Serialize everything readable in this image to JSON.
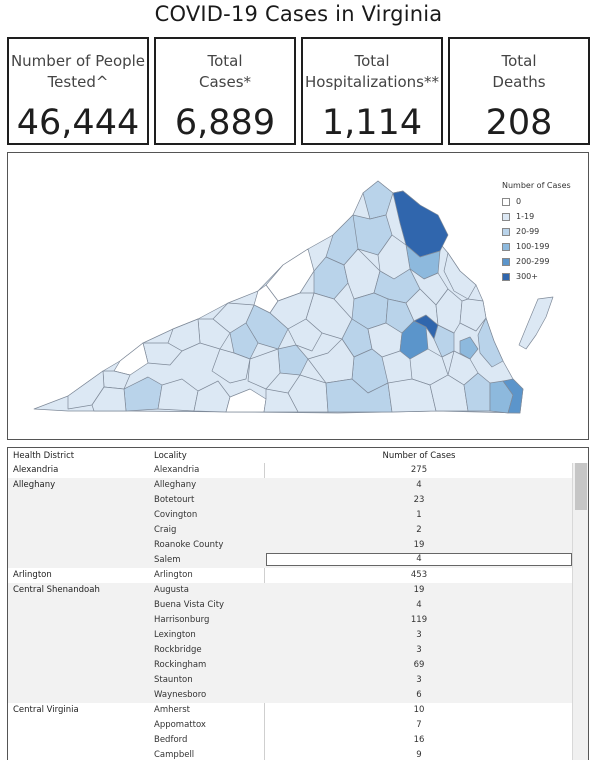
{
  "header": {
    "title": "COVID-19 Cases in Virginia"
  },
  "kpis": [
    {
      "label_lines": [
        "Number of People",
        "Tested^"
      ],
      "value": "46,444"
    },
    {
      "label_lines": [
        "Total",
        "Cases*"
      ],
      "value": "6,889"
    },
    {
      "label_lines": [
        "Total",
        "Hospitalizations**"
      ],
      "value": "1,114"
    },
    {
      "label_lines": [
        "Total",
        "Deaths"
      ],
      "value": "208"
    }
  ],
  "map": {
    "legend_title": "Number of Cases",
    "legend": [
      {
        "label": "0",
        "color": "#ffffff"
      },
      {
        "label": "1-19",
        "color": "#dce8f4"
      },
      {
        "label": "20-99",
        "color": "#b9d3ea"
      },
      {
        "label": "100-199",
        "color": "#8db9dd"
      },
      {
        "label": "200-299",
        "color": "#5b95cb"
      },
      {
        "label": "300+",
        "color": "#3066ad"
      }
    ]
  },
  "table": {
    "headers": {
      "district": "Health District",
      "locality": "Locality",
      "cases": "Number of Cases"
    },
    "groups": [
      {
        "district": "Alexandria",
        "rows": [
          {
            "locality": "Alexandria",
            "cases": "275"
          }
        ]
      },
      {
        "district": "Alleghany",
        "rows": [
          {
            "locality": "Alleghany",
            "cases": "4"
          },
          {
            "locality": "Botetourt",
            "cases": "23"
          },
          {
            "locality": "Covington",
            "cases": "1"
          },
          {
            "locality": "Craig",
            "cases": "2"
          },
          {
            "locality": "Roanoke County",
            "cases": "19"
          },
          {
            "locality": "Salem",
            "cases": "4"
          }
        ]
      },
      {
        "district": "Arlington",
        "rows": [
          {
            "locality": "Arlington",
            "cases": "453"
          }
        ]
      },
      {
        "district": "Central Shenandoah",
        "rows": [
          {
            "locality": "Augusta",
            "cases": "19"
          },
          {
            "locality": "Buena Vista City",
            "cases": "4"
          },
          {
            "locality": "Harrisonburg",
            "cases": "119"
          },
          {
            "locality": "Lexington",
            "cases": "3"
          },
          {
            "locality": "Rockbridge",
            "cases": "3"
          },
          {
            "locality": "Rockingham",
            "cases": "69"
          },
          {
            "locality": "Staunton",
            "cases": "3"
          },
          {
            "locality": "Waynesboro",
            "cases": "6"
          }
        ]
      },
      {
        "district": "Central Virginia",
        "rows": [
          {
            "locality": "Amherst",
            "cases": "10"
          },
          {
            "locality": "Appomattox",
            "cases": "7"
          },
          {
            "locality": "Bedford",
            "cases": "16"
          },
          {
            "locality": "Campbell",
            "cases": "9"
          }
        ]
      }
    ],
    "selected_cell": "Salem"
  }
}
